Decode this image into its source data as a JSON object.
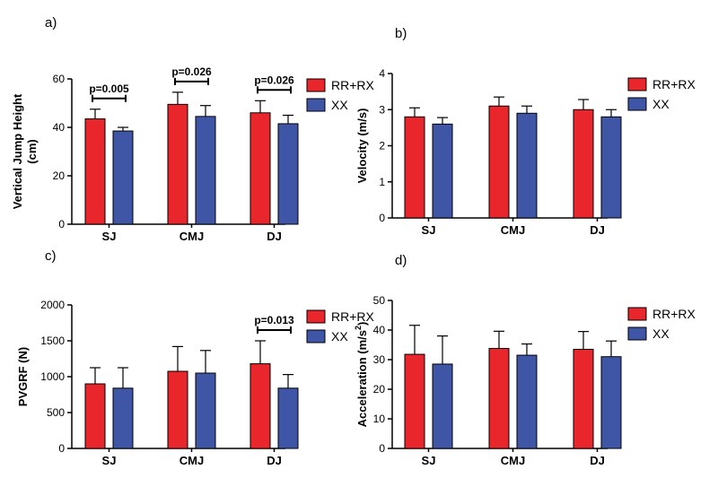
{
  "colors": {
    "RR+RX": "#e8262b",
    "XX": "#3f55a5"
  },
  "chart_data": [
    {
      "panel": "a)",
      "type": "bar",
      "ylabel": "Vertical Jump Height",
      "ylabel_line2": "(cm)",
      "ylim": [
        0,
        60
      ],
      "yticks": [
        0,
        20,
        40,
        60
      ],
      "categories": [
        "SJ",
        "CMJ",
        "DJ"
      ],
      "series": [
        {
          "name": "RR+RX",
          "values": [
            43.5,
            49.5,
            46
          ],
          "errors": [
            4,
            5,
            5
          ]
        },
        {
          "name": "XX",
          "values": [
            38.5,
            44.5,
            41.5
          ],
          "errors": [
            1.5,
            4.5,
            3.5
          ]
        }
      ],
      "annotations": [
        "p=0.005",
        "p=0.026",
        "p=0.026"
      ],
      "annotation_categories": [
        0,
        1,
        2
      ]
    },
    {
      "panel": "b)",
      "type": "bar",
      "ylabel": "Velocity (m/s)",
      "ylim": [
        0,
        4
      ],
      "yticks": [
        0,
        1,
        2,
        3,
        4
      ],
      "categories": [
        "SJ",
        "CMJ",
        "DJ"
      ],
      "series": [
        {
          "name": "RR+RX",
          "values": [
            2.8,
            3.1,
            3.0
          ],
          "errors": [
            0.25,
            0.25,
            0.28
          ]
        },
        {
          "name": "XX",
          "values": [
            2.6,
            2.9,
            2.8
          ],
          "errors": [
            0.18,
            0.2,
            0.2
          ]
        }
      ],
      "annotations": [],
      "annotation_categories": []
    },
    {
      "panel": "c)",
      "type": "bar",
      "ylabel": "PVGRF (N)",
      "ylim": [
        0,
        2000
      ],
      "yticks": [
        0,
        500,
        1000,
        1500,
        2000
      ],
      "categories": [
        "SJ",
        "CMJ",
        "DJ"
      ],
      "series": [
        {
          "name": "RR+RX",
          "values": [
            900,
            1075,
            1180
          ],
          "errors": [
            225,
            345,
            320
          ]
        },
        {
          "name": "XX",
          "values": [
            840,
            1050,
            840
          ],
          "errors": [
            285,
            315,
            190
          ]
        }
      ],
      "annotations": [
        "p=0.013"
      ],
      "annotation_categories": [
        2
      ]
    },
    {
      "panel": "d)",
      "type": "bar",
      "ylabel": "Acceleration (m/s",
      "ylabel_sup": "2",
      "ylabel_close": ")",
      "ylim": [
        0,
        50
      ],
      "yticks": [
        0,
        10,
        20,
        30,
        40,
        50
      ],
      "categories": [
        "SJ",
        "CMJ",
        "DJ"
      ],
      "series": [
        {
          "name": "RR+RX",
          "values": [
            31.8,
            33.8,
            33.5
          ],
          "errors": [
            9.8,
            5.8,
            6
          ]
        },
        {
          "name": "XX",
          "values": [
            28.5,
            31.5,
            31
          ],
          "errors": [
            9.5,
            3.8,
            5.3
          ]
        }
      ],
      "annotations": [],
      "annotation_categories": []
    }
  ]
}
